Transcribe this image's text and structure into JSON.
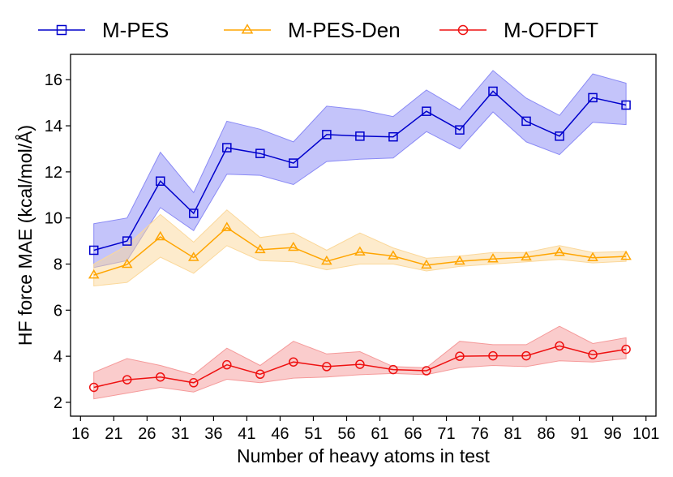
{
  "chart_data": {
    "type": "line",
    "title": "",
    "xlabel": "Number of heavy atoms in test",
    "ylabel": "HF force MAE (kcal/mol/Å)",
    "xlim": [
      14.5,
      102.5
    ],
    "ylim": [
      1.4,
      17.1
    ],
    "x_ticks": [
      16,
      21,
      26,
      31,
      36,
      41,
      46,
      51,
      56,
      61,
      66,
      71,
      76,
      81,
      86,
      91,
      96,
      101
    ],
    "y_ticks": [
      2,
      4,
      6,
      8,
      10,
      12,
      14,
      16
    ],
    "legend_position": "top, outside plot",
    "x": [
      18,
      23,
      28,
      33,
      38,
      43,
      48,
      53,
      58,
      63,
      68,
      73,
      78,
      83,
      88,
      93,
      98
    ],
    "series": [
      {
        "name": "M-PES",
        "color": "#0000cc",
        "band_color": "#8a8af5",
        "marker": "square",
        "values": [
          8.6,
          9.0,
          11.6,
          10.2,
          13.05,
          12.8,
          12.38,
          13.62,
          13.55,
          13.52,
          14.63,
          13.82,
          15.5,
          14.2,
          13.55,
          15.22,
          14.9
        ],
        "lower": [
          7.85,
          8.15,
          10.45,
          9.45,
          11.9,
          11.85,
          11.45,
          12.45,
          12.55,
          12.6,
          13.75,
          13.0,
          14.6,
          13.3,
          12.75,
          14.15,
          14.05
        ],
        "upper": [
          9.75,
          10.0,
          12.85,
          11.1,
          14.2,
          13.85,
          13.3,
          14.85,
          14.7,
          14.4,
          15.55,
          14.7,
          16.4,
          15.2,
          14.45,
          16.25,
          15.85
        ]
      },
      {
        "name": "M-PES-Den",
        "color": "#ffa500",
        "band_color": "#fbd89a",
        "marker": "triangle",
        "values": [
          7.52,
          7.98,
          9.18,
          8.28,
          9.58,
          8.62,
          8.72,
          8.12,
          8.52,
          8.35,
          7.95,
          8.12,
          8.22,
          8.3,
          8.5,
          8.27,
          8.33
        ],
        "lower": [
          7.05,
          7.2,
          8.3,
          7.6,
          8.8,
          8.15,
          8.1,
          7.75,
          8.0,
          8.0,
          7.7,
          7.9,
          8.0,
          8.1,
          8.2,
          8.05,
          8.12
        ],
        "upper": [
          8.0,
          8.8,
          10.15,
          8.95,
          10.35,
          9.15,
          9.35,
          8.6,
          9.35,
          8.7,
          8.25,
          8.35,
          8.5,
          8.5,
          8.8,
          8.5,
          8.55
        ]
      },
      {
        "name": "M-OFDFT",
        "color": "#ee1111",
        "band_color": "#f59a9a",
        "marker": "circle",
        "values": [
          2.65,
          2.98,
          3.1,
          2.85,
          3.63,
          3.22,
          3.75,
          3.55,
          3.65,
          3.42,
          3.37,
          4.0,
          4.02,
          4.02,
          4.45,
          4.07,
          4.3
        ],
        "lower": [
          2.15,
          2.4,
          2.65,
          2.45,
          3.0,
          2.85,
          3.05,
          3.1,
          3.2,
          3.25,
          3.2,
          3.5,
          3.6,
          3.55,
          3.8,
          3.75,
          3.9
        ],
        "upper": [
          3.3,
          3.9,
          3.6,
          3.2,
          4.35,
          3.6,
          4.65,
          4.1,
          4.2,
          3.55,
          3.5,
          4.65,
          4.5,
          4.5,
          5.3,
          4.55,
          4.8
        ]
      }
    ]
  }
}
